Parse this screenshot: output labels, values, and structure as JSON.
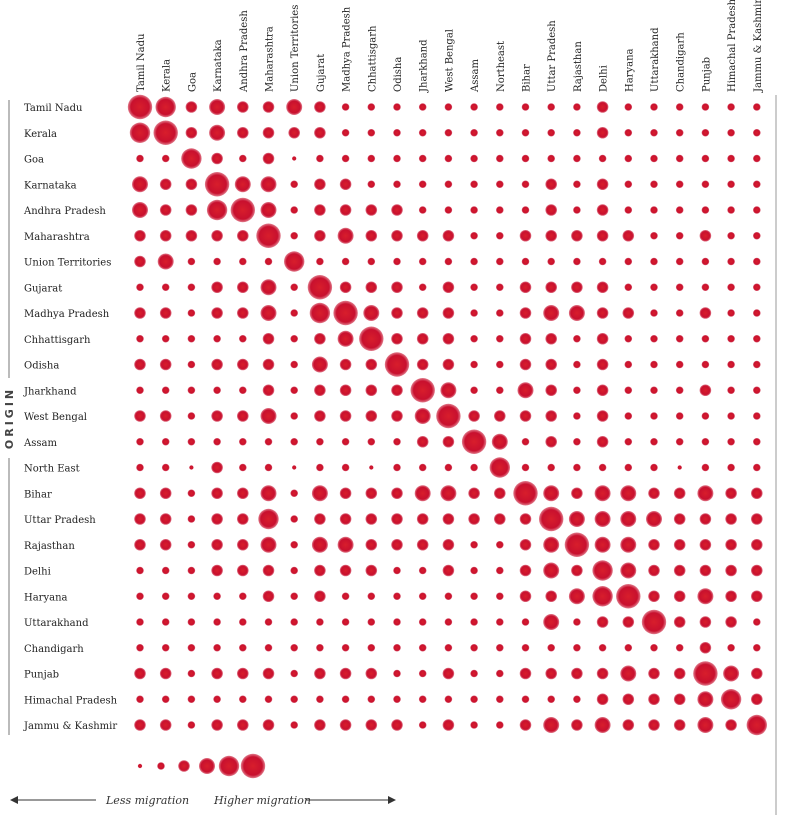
{
  "chart_data": {
    "type": "bubble-matrix",
    "title": "",
    "y_axis_title": "ORIGIN",
    "columns": [
      "Tamil Nadu",
      "Kerala",
      "Goa",
      "Karnataka",
      "Andhra Pradesh",
      "Maharashtra",
      "Union Territories",
      "Gujarat",
      "Madhya Pradesh",
      "Chhattisgarh",
      "Odisha",
      "Jharkhand",
      "West Bengal",
      "Assam",
      "Northeast",
      "Bihar",
      "Uttar Pradesh",
      "Rajasthan",
      "Delhi",
      "Haryana",
      "Uttarakhand",
      "Chandigarh",
      "Punjab",
      "Himachal Pradesh",
      "Jammu & Kashmir"
    ],
    "rows": [
      "Tamil Nadu",
      "Kerala",
      "Goa",
      "Karnataka",
      "Andhra Pradesh",
      "Maharashtra",
      "Union Territories",
      "Gujarat",
      "Madhya Pradesh",
      "Chhattisgarh",
      "Odisha",
      "Jharkhand",
      "West Bengal",
      "Assam",
      "North East",
      "Bihar",
      "Uttar Pradesh",
      "Rajasthan",
      "Delhi",
      "Haryana",
      "Uttarakhand",
      "Chandigarh",
      "Punjab",
      "Himachal Pradesh",
      "Jammu & Kashmir"
    ],
    "scale_note": "bubble level 1 (least) to 6 (most)",
    "values": [
      [
        6,
        5,
        3,
        4,
        3,
        3,
        4,
        3,
        2,
        2,
        2,
        2,
        2,
        2,
        2,
        2,
        2,
        2,
        3,
        2,
        2,
        2,
        2,
        2,
        2
      ],
      [
        5,
        6,
        3,
        4,
        3,
        3,
        3,
        3,
        2,
        2,
        2,
        2,
        2,
        2,
        2,
        2,
        2,
        2,
        3,
        2,
        2,
        2,
        2,
        2,
        2
      ],
      [
        2,
        2,
        5,
        3,
        2,
        3,
        1,
        2,
        2,
        2,
        2,
        2,
        2,
        2,
        2,
        2,
        2,
        2,
        2,
        2,
        2,
        2,
        2,
        2,
        2
      ],
      [
        4,
        3,
        3,
        6,
        4,
        4,
        2,
        3,
        3,
        2,
        2,
        2,
        2,
        2,
        2,
        2,
        3,
        2,
        3,
        2,
        2,
        2,
        2,
        2,
        2
      ],
      [
        4,
        3,
        3,
        5,
        6,
        4,
        2,
        3,
        3,
        3,
        3,
        2,
        2,
        2,
        2,
        2,
        3,
        2,
        3,
        2,
        2,
        2,
        2,
        2,
        2
      ],
      [
        3,
        3,
        3,
        3,
        3,
        6,
        2,
        3,
        4,
        3,
        3,
        3,
        3,
        2,
        2,
        3,
        3,
        3,
        3,
        3,
        2,
        2,
        3,
        2,
        2
      ],
      [
        3,
        4,
        2,
        2,
        2,
        2,
        5,
        2,
        2,
        2,
        2,
        2,
        2,
        2,
        2,
        2,
        2,
        2,
        2,
        2,
        2,
        2,
        2,
        2,
        2
      ],
      [
        2,
        2,
        2,
        3,
        3,
        4,
        2,
        6,
        3,
        3,
        3,
        2,
        3,
        2,
        2,
        3,
        3,
        3,
        3,
        2,
        2,
        2,
        2,
        2,
        2
      ],
      [
        3,
        3,
        2,
        3,
        3,
        4,
        2,
        5,
        6,
        4,
        3,
        3,
        3,
        2,
        2,
        3,
        4,
        4,
        3,
        3,
        2,
        2,
        3,
        2,
        2
      ],
      [
        2,
        2,
        2,
        2,
        2,
        3,
        2,
        3,
        4,
        6,
        3,
        3,
        3,
        2,
        2,
        3,
        3,
        2,
        3,
        2,
        2,
        2,
        2,
        2,
        2
      ],
      [
        3,
        3,
        2,
        3,
        3,
        3,
        2,
        4,
        3,
        3,
        6,
        3,
        3,
        2,
        2,
        3,
        3,
        2,
        3,
        2,
        2,
        2,
        2,
        2,
        2
      ],
      [
        2,
        2,
        2,
        2,
        2,
        3,
        2,
        3,
        3,
        3,
        3,
        6,
        4,
        2,
        2,
        4,
        3,
        2,
        3,
        2,
        2,
        2,
        3,
        2,
        2
      ],
      [
        3,
        3,
        2,
        3,
        3,
        4,
        2,
        3,
        3,
        3,
        3,
        4,
        6,
        3,
        3,
        3,
        3,
        2,
        3,
        2,
        2,
        2,
        2,
        2,
        2
      ],
      [
        2,
        2,
        2,
        2,
        2,
        2,
        2,
        2,
        2,
        2,
        2,
        3,
        3,
        6,
        4,
        2,
        3,
        2,
        3,
        2,
        2,
        2,
        2,
        2,
        2
      ],
      [
        2,
        2,
        1,
        3,
        2,
        2,
        1,
        2,
        2,
        1,
        2,
        2,
        2,
        2,
        5,
        2,
        2,
        2,
        2,
        2,
        2,
        1,
        2,
        2,
        2
      ],
      [
        3,
        3,
        2,
        3,
        3,
        4,
        2,
        4,
        3,
        3,
        3,
        4,
        4,
        3,
        3,
        6,
        4,
        3,
        4,
        4,
        3,
        3,
        4,
        3,
        3
      ],
      [
        3,
        3,
        2,
        3,
        3,
        5,
        2,
        3,
        3,
        3,
        3,
        3,
        3,
        3,
        3,
        3,
        6,
        4,
        4,
        4,
        4,
        3,
        3,
        3,
        3
      ],
      [
        3,
        3,
        2,
        3,
        3,
        4,
        2,
        4,
        4,
        3,
        3,
        3,
        3,
        2,
        2,
        3,
        4,
        6,
        4,
        4,
        3,
        3,
        3,
        3,
        3
      ],
      [
        2,
        2,
        2,
        3,
        3,
        3,
        2,
        3,
        3,
        3,
        2,
        2,
        3,
        2,
        2,
        3,
        4,
        3,
        5,
        4,
        3,
        3,
        3,
        3,
        3
      ],
      [
        2,
        2,
        2,
        2,
        2,
        3,
        2,
        3,
        2,
        2,
        2,
        2,
        2,
        2,
        2,
        3,
        3,
        4,
        5,
        6,
        3,
        3,
        4,
        3,
        3
      ],
      [
        2,
        2,
        2,
        2,
        2,
        2,
        2,
        2,
        2,
        2,
        2,
        2,
        2,
        2,
        2,
        2,
        4,
        2,
        3,
        3,
        6,
        3,
        3,
        3,
        2
      ],
      [
        2,
        2,
        2,
        2,
        2,
        2,
        2,
        2,
        2,
        2,
        2,
        2,
        2,
        2,
        2,
        2,
        2,
        2,
        2,
        2,
        2,
        2,
        3,
        2,
        2
      ],
      [
        3,
        3,
        2,
        3,
        3,
        3,
        2,
        3,
        3,
        3,
        2,
        2,
        3,
        2,
        2,
        3,
        3,
        3,
        3,
        4,
        3,
        3,
        6,
        4,
        3
      ],
      [
        2,
        2,
        2,
        2,
        2,
        2,
        2,
        2,
        2,
        2,
        2,
        2,
        2,
        2,
        2,
        2,
        2,
        2,
        3,
        3,
        3,
        3,
        4,
        5,
        3
      ],
      [
        3,
        3,
        2,
        3,
        3,
        3,
        2,
        3,
        3,
        3,
        3,
        2,
        3,
        2,
        2,
        3,
        4,
        3,
        4,
        3,
        3,
        3,
        4,
        3,
        5
      ]
    ],
    "legend": {
      "levels": [
        1,
        2,
        3,
        4,
        5,
        6
      ],
      "less_label": "Less migration",
      "higher_label": "Higher migration"
    },
    "colors": {
      "bubble": "#c8102e",
      "text": "#222222",
      "axis": "#555555"
    }
  }
}
